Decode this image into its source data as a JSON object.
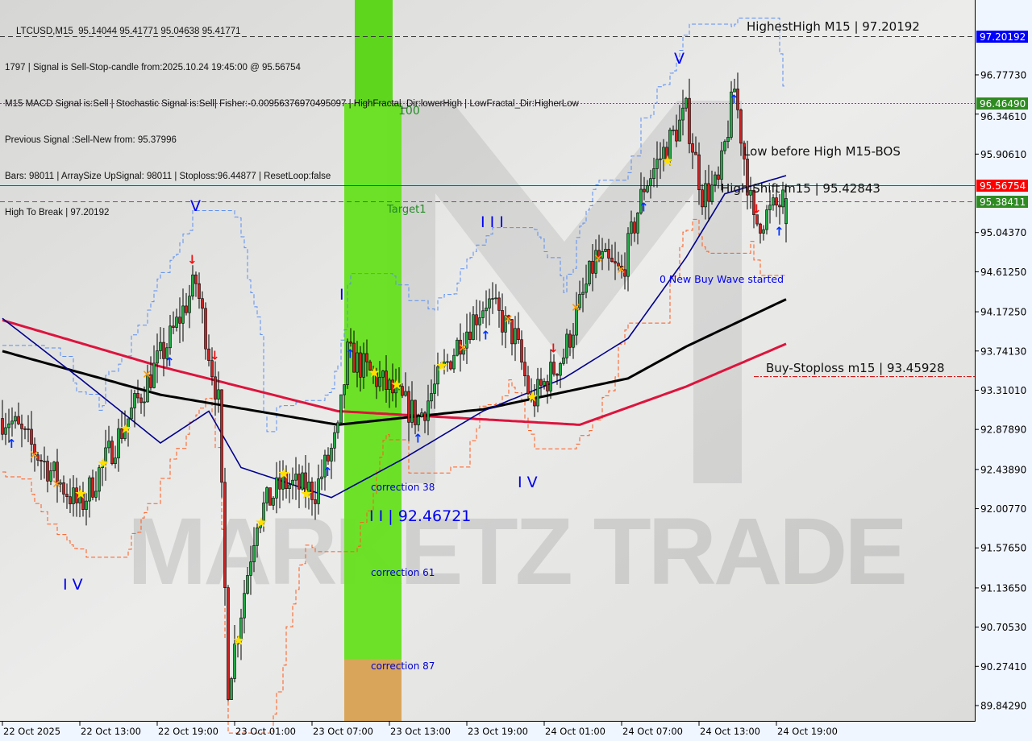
{
  "header": {
    "line1": "LTCUSD,M15  95.14044 95.41771 95.04638 95.41771",
    "line2": "1797 | Signal is Sell-Stop-candle from:2025.10.24 19:45:00 @ 95.56754",
    "line3": "M15 MACD Signal is:Sell | Stochastic Signal is:Sell| Fisher:-0.00956376970495097 | HighFractal_Dir:lowerHigh | LowFractal_Dir:HigherLow",
    "line3_overlay": "High To Break | 97.20192",
    "line4": "Previous Signal :Sell-New from: 95.37996",
    "line5": "Bars: 98011 | ArraySize UpSignal: 98011 | Stoploss:96.44877 | ResetLoop:false"
  },
  "watermark": "MARKETZ I TRADE",
  "chart_data": {
    "type": "candlestick",
    "symbol": "LTCUSD",
    "timeframe": "M15",
    "ylim": [
      89.8429,
      97.20192
    ],
    "grid": false,
    "y_ticks": [
      "96.77730",
      "96.34610",
      "95.90610",
      "95.04370",
      "94.61250",
      "94.17250",
      "93.74130",
      "93.31010",
      "92.87890",
      "92.43890",
      "92.00770",
      "91.57650",
      "91.13650",
      "90.70530",
      "90.27410",
      "89.84290"
    ],
    "x_ticks": [
      "22 Oct 2025",
      "22 Oct 13:00",
      "22 Oct 19:00",
      "23 Oct 01:00",
      "23 Oct 07:00",
      "23 Oct 13:00",
      "23 Oct 19:00",
      "24 Oct 01:00",
      "24 Oct 07:00",
      "24 Oct 13:00",
      "24 Oct 19:00"
    ],
    "first_bar_time": "2025-10-22 07:00",
    "last_bar": {
      "open": 95.14044,
      "high": 95.41771,
      "low": 95.04638,
      "close": 95.41771
    },
    "price_path": [
      [
        "2025-10-22 07:30",
        93.0
      ],
      [
        "2025-10-22 13:00",
        92.02
      ],
      [
        "2025-10-22 16:45",
        93.0
      ],
      [
        "2025-10-22 20:00",
        93.88
      ],
      [
        "2025-10-22 22:00",
        94.5
      ],
      [
        "2025-10-22 23:45",
        93.17
      ],
      [
        "2025-10-23 00:30",
        90.07
      ],
      [
        "2025-10-23 02:45",
        91.93
      ],
      [
        "2025-10-23 04:45",
        92.29
      ],
      [
        "2025-10-23 07:15",
        92.2
      ],
      [
        "2025-10-23 09:00",
        92.82
      ],
      [
        "2025-10-23 09:45",
        93.7
      ],
      [
        "2025-10-23 12:45",
        93.35
      ],
      [
        "2025-10-23 15:15",
        93.0
      ],
      [
        "2025-10-23 18:30",
        93.88
      ],
      [
        "2025-10-23 20:30",
        94.3
      ],
      [
        "2025-10-23 22:45",
        93.88
      ],
      [
        "2025-10-24 00:00",
        93.17
      ],
      [
        "2025-10-24 02:30",
        93.7
      ],
      [
        "2025-10-24 05:00",
        94.77
      ],
      [
        "2025-10-24 07:00",
        94.59
      ],
      [
        "2025-10-24 08:45",
        95.56
      ],
      [
        "2025-10-24 12:00",
        96.36
      ],
      [
        "2025-10-24 13:15",
        95.47
      ],
      [
        "2025-10-24 14:30",
        95.56
      ],
      [
        "2025-10-24 15:45",
        96.63
      ],
      [
        "2025-10-24 17:15",
        95.12
      ],
      [
        "2025-10-24 19:45",
        95.41771
      ]
    ],
    "moving_averages": [
      {
        "color": "#dc143c",
        "path": [
          [
            "2025-10-22 07:00",
            94.08
          ],
          [
            "2025-10-22 19:15",
            93.57
          ],
          [
            "2025-10-23 09:00",
            93.08
          ],
          [
            "2025-10-24 03:45",
            92.93
          ],
          [
            "2025-10-24 12:00",
            93.35
          ],
          [
            "2025-10-24 19:45",
            93.82
          ]
        ]
      },
      {
        "color": "#000000",
        "path": [
          [
            "2025-10-22 07:00",
            93.74
          ],
          [
            "2025-10-22 19:15",
            93.26
          ],
          [
            "2025-10-23 09:00",
            92.93
          ],
          [
            "2025-10-23 20:15",
            93.1
          ],
          [
            "2025-10-24 07:30",
            93.44
          ],
          [
            "2025-10-24 12:00",
            93.79
          ],
          [
            "2025-10-24 19:45",
            94.31
          ]
        ]
      },
      {
        "color": "#00008b",
        "path": [
          [
            "2025-10-22 07:00",
            94.1
          ],
          [
            "2025-10-22 13:00",
            93.44
          ],
          [
            "2025-10-22 19:15",
            92.73
          ],
          [
            "2025-10-22 23:00",
            93.08
          ],
          [
            "2025-10-23 01:30",
            92.46
          ],
          [
            "2025-10-23 08:30",
            92.13
          ],
          [
            "2025-10-23 14:00",
            92.55
          ],
          [
            "2025-10-23 20:15",
            93.08
          ],
          [
            "2025-10-24 02:30",
            93.44
          ],
          [
            "2025-10-24 07:30",
            93.88
          ],
          [
            "2025-10-24 12:00",
            94.77
          ],
          [
            "2025-10-24 15:00",
            95.47
          ],
          [
            "2025-10-24 19:45",
            95.67
          ]
        ]
      }
    ],
    "levels": [
      {
        "price": 97.20192,
        "label": "97.20192",
        "bg": "#0000ff",
        "text": "HighestHigh   M15 | 97.20192",
        "style": "dash",
        "color": "#333333"
      },
      {
        "price": 96.4649,
        "label": "96.46490",
        "bg": "#2e8b22",
        "text": "100",
        "style": "dot",
        "color": "#228b22"
      },
      {
        "price": 95.56754,
        "label": "95.56754",
        "bg": "#ff0000",
        "text": "High Shift m15 | 95.42843",
        "style": "solid",
        "color": "#ff0000"
      },
      {
        "price": 95.38411,
        "label": "95.38411",
        "bg": "#2e8b22",
        "text": "Target1",
        "style": "dash",
        "color": "#228b22"
      }
    ],
    "annotations": {
      "low_before_high": "Low before High   M15-BOS",
      "new_buy_wave": "0 New Buy Wave started",
      "buy_stoploss": "Buy-Stoploss m15 | 93.45928",
      "buy_stoploss_price": 93.45928,
      "wave2": "I I | 92.46721",
      "correction38": "correction 38",
      "correction61": "correction 61",
      "correction87": "correction 87",
      "waves": [
        "V",
        "I",
        "I I I",
        "I V",
        "V",
        "I V"
      ]
    },
    "colors": {
      "bull": "#22aa44",
      "bear": "#cc2222",
      "zone_green": "#66e01e",
      "zone_orange": "#d9a55a"
    }
  }
}
